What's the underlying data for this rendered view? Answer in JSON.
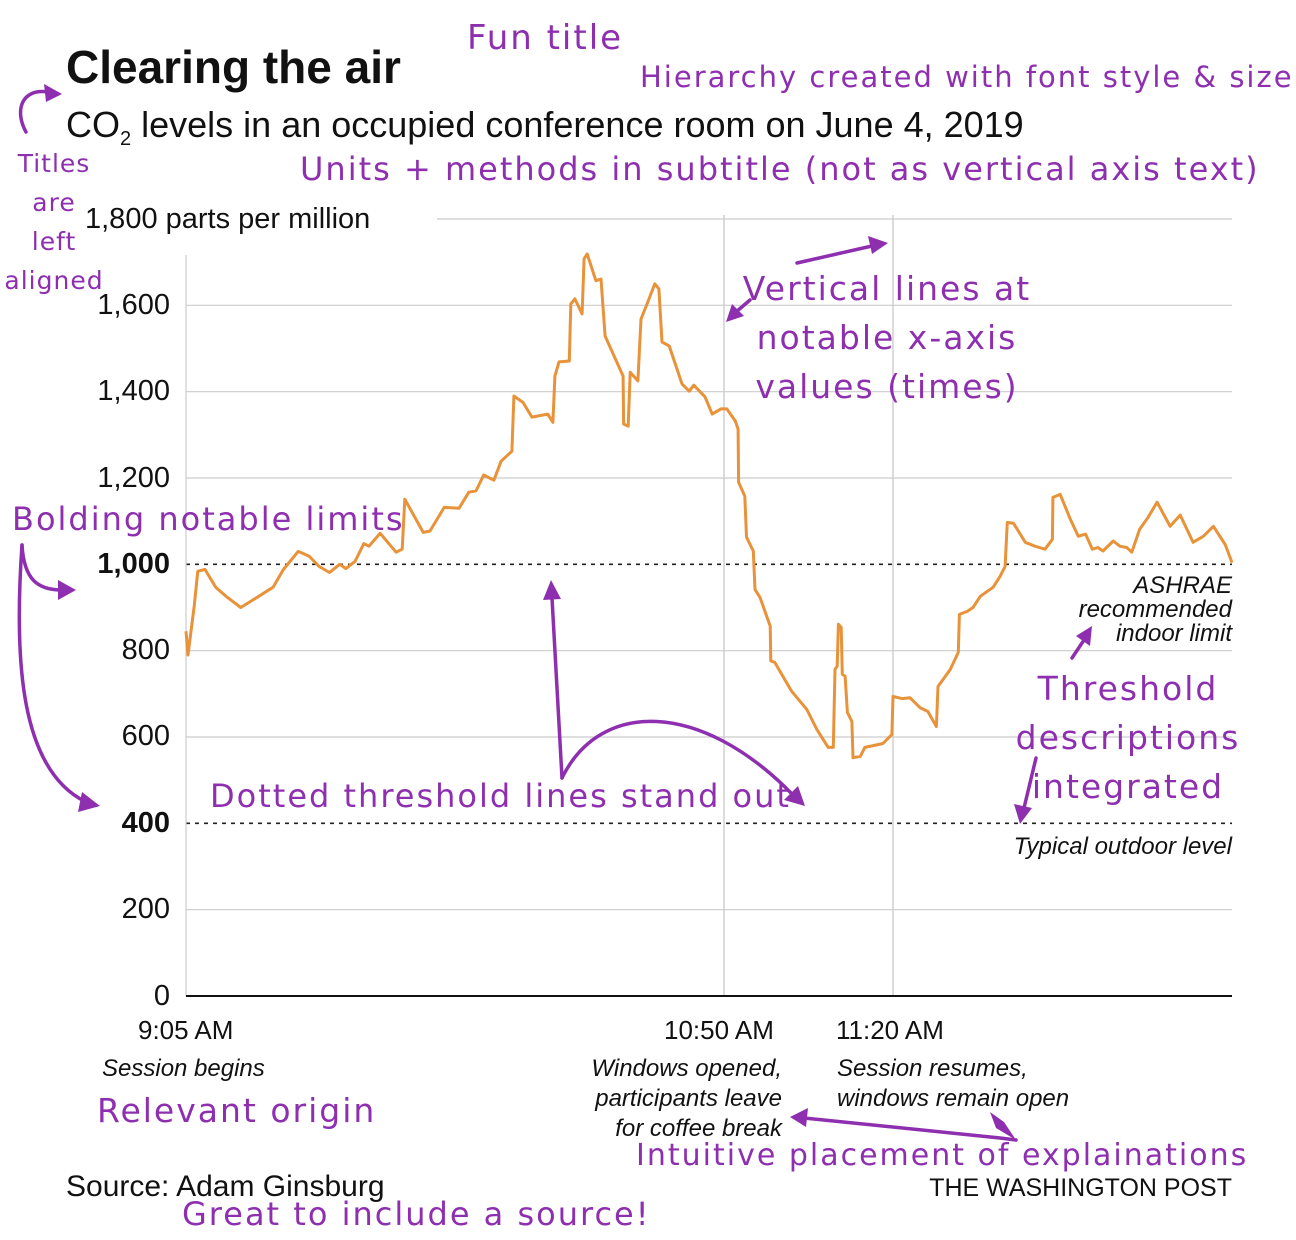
{
  "title": "Clearing the air",
  "subtitle_pre": "CO",
  "subtitle_sub": "2",
  "subtitle_post": " levels in an occupied conference room on June 4, 2019",
  "source": "Source: Adam Ginsburg",
  "publisher": "THE WASHINGTON POST",
  "colors": {
    "line": "#e8923a",
    "annotation": "#8e2fb0",
    "grid": "#cccccc"
  },
  "chart_data": {
    "type": "line",
    "title": "Clearing the air",
    "ylabel": "parts per million",
    "ylim": [
      0,
      1800
    ],
    "y_ticks": [
      {
        "value": 1800,
        "label": "1,800 parts per million",
        "bold": false
      },
      {
        "value": 1600,
        "label": "1,600",
        "bold": false
      },
      {
        "value": 1400,
        "label": "1,400",
        "bold": false
      },
      {
        "value": 1200,
        "label": "1,200",
        "bold": false
      },
      {
        "value": 1000,
        "label": "1,000",
        "bold": true
      },
      {
        "value": 800,
        "label": "800",
        "bold": false
      },
      {
        "value": 600,
        "label": "600",
        "bold": false
      },
      {
        "value": 400,
        "label": "400",
        "bold": true
      },
      {
        "value": 200,
        "label": "200",
        "bold": false
      },
      {
        "value": 0,
        "label": "0",
        "bold": false
      }
    ],
    "x_unit": "minutes after 9:05 AM",
    "xlim": [
      0,
      195
    ],
    "x_ticks": [
      {
        "value": 0,
        "label": "9:05 AM",
        "note": "Session begins"
      },
      {
        "value": 105,
        "label": "10:50 AM",
        "note_lines": [
          "Windows opened,",
          "participants leave",
          "for coffee break"
        ]
      },
      {
        "value": 135,
        "label": "11:20 AM",
        "note_lines": [
          "Session resumes,",
          "windows remain open"
        ]
      }
    ],
    "thresholds": [
      {
        "value": 1000,
        "label_lines": [
          "ASHRAE",
          "recommended",
          "indoor limit"
        ]
      },
      {
        "value": 400,
        "label_lines": [
          "Typical outdoor level"
        ]
      }
    ],
    "series": [
      {
        "name": "CO2",
        "x": [
          0,
          0.4,
          1.6,
          2.3,
          3.7,
          5.8,
          7.8,
          10.7,
          14.2,
          17,
          19,
          21.9,
          24,
          26,
          28,
          30,
          31.2,
          33,
          34.7,
          35.7,
          37.9,
          41,
          42.2,
          42.7,
          46.3,
          47.6,
          50.4,
          53.3,
          55.2,
          56.6,
          58.1,
          60.1,
          61.5,
          63.6,
          64,
          65.8,
          67.5,
          70.6,
          71.6,
          72,
          72.8,
          74.8,
          75.1,
          75.9,
          77.3,
          77.7,
          78.3,
          80,
          81,
          81.8,
          85.3,
          85.4,
          86.3,
          86.7,
          88.2,
          88.8,
          90.2,
          91.5,
          92.3,
          92.9,
          94.3,
          96.8,
          98.2,
          99.1,
          101.3,
          102.7,
          104.4,
          105.5,
          107,
          107.5,
          107.6,
          108.7,
          109,
          110.2,
          110.5,
          111.4,
          113.2,
          113.3,
          114,
          117,
          119.7,
          121.5,
          123.5,
          124.4,
          124.7,
          125.1,
          125.3,
          125.8,
          126,
          126.5,
          126.9,
          127.7,
          127.9,
          129.2,
          130,
          131.5,
          133.2,
          134.8,
          135,
          136.6,
          138,
          139.8,
          141.2,
          142.7,
          143,
          145.2,
          146.6,
          146.8,
          148.2,
          149.2,
          150.5,
          152.8,
          154,
          154.9,
          155.3,
          156.4,
          158.5,
          160.2,
          162,
          163.3,
          163.4,
          164.7,
          166.5,
          167.9,
          169.2,
          170.4,
          171.4,
          172.3,
          174.1,
          175.3,
          176.5,
          177.4,
          178.8,
          180.3,
          181.9,
          184.2,
          186,
          188.3,
          190.1,
          191.9,
          194,
          195.2
        ],
        "y": [
          845,
          790,
          903,
          984,
          988,
          947,
          926,
          900,
          926,
          947,
          988,
          1030,
          1019,
          995,
          981,
          1000,
          990,
          1007,
          1048,
          1042,
          1072,
          1028,
          1035,
          1151,
          1074,
          1077,
          1132,
          1130,
          1167,
          1170,
          1207,
          1195,
          1239,
          1262,
          1390,
          1375,
          1341,
          1348,
          1329,
          1436,
          1469,
          1471,
          1603,
          1615,
          1580,
          1708,
          1719,
          1657,
          1661,
          1529,
          1436,
          1325,
          1320,
          1445,
          1425,
          1568,
          1610,
          1650,
          1638,
          1515,
          1506,
          1418,
          1401,
          1415,
          1388,
          1348,
          1360,
          1360,
          1332,
          1313,
          1190,
          1158,
          1063,
          1031,
          942,
          923,
          857,
          776,
          773,
          706,
          664,
          617,
          576,
          576,
          757,
          764,
          861,
          854,
          745,
          741,
          657,
          636,
          552,
          555,
          576,
          580,
          585,
          606,
          694,
          689,
          691,
          668,
          659,
          624,
          717,
          757,
          796,
          884,
          891,
          900,
          926,
          947,
          972,
          995,
          1097,
          1095,
          1051,
          1042,
          1035,
          1058,
          1155,
          1162,
          1104,
          1065,
          1070,
          1035,
          1039,
          1031,
          1054,
          1042,
          1039,
          1028,
          1081,
          1109,
          1144,
          1088,
          1114,
          1051,
          1065,
          1088,
          1046,
          1004
        ]
      }
    ]
  },
  "annotations": {
    "fun_title": "Fun title",
    "hierarchy": "Hierarchy created with font style & size",
    "titles_left": [
      "Titles",
      "are",
      "left",
      "aligned"
    ],
    "units": "Units + methods in subtitle (not as vertical axis text)",
    "vertical_lines": [
      "Vertical lines at",
      "notable x-axis",
      "values (times)"
    ],
    "bolding": "Bolding notable limits",
    "threshold_desc": [
      "Threshold",
      "descriptions",
      "integrated"
    ],
    "dotted": "Dotted threshold lines stand out",
    "origin": "Relevant origin",
    "placement": "Intuitive placement of explainations",
    "source_note": "Great to include a source!"
  }
}
